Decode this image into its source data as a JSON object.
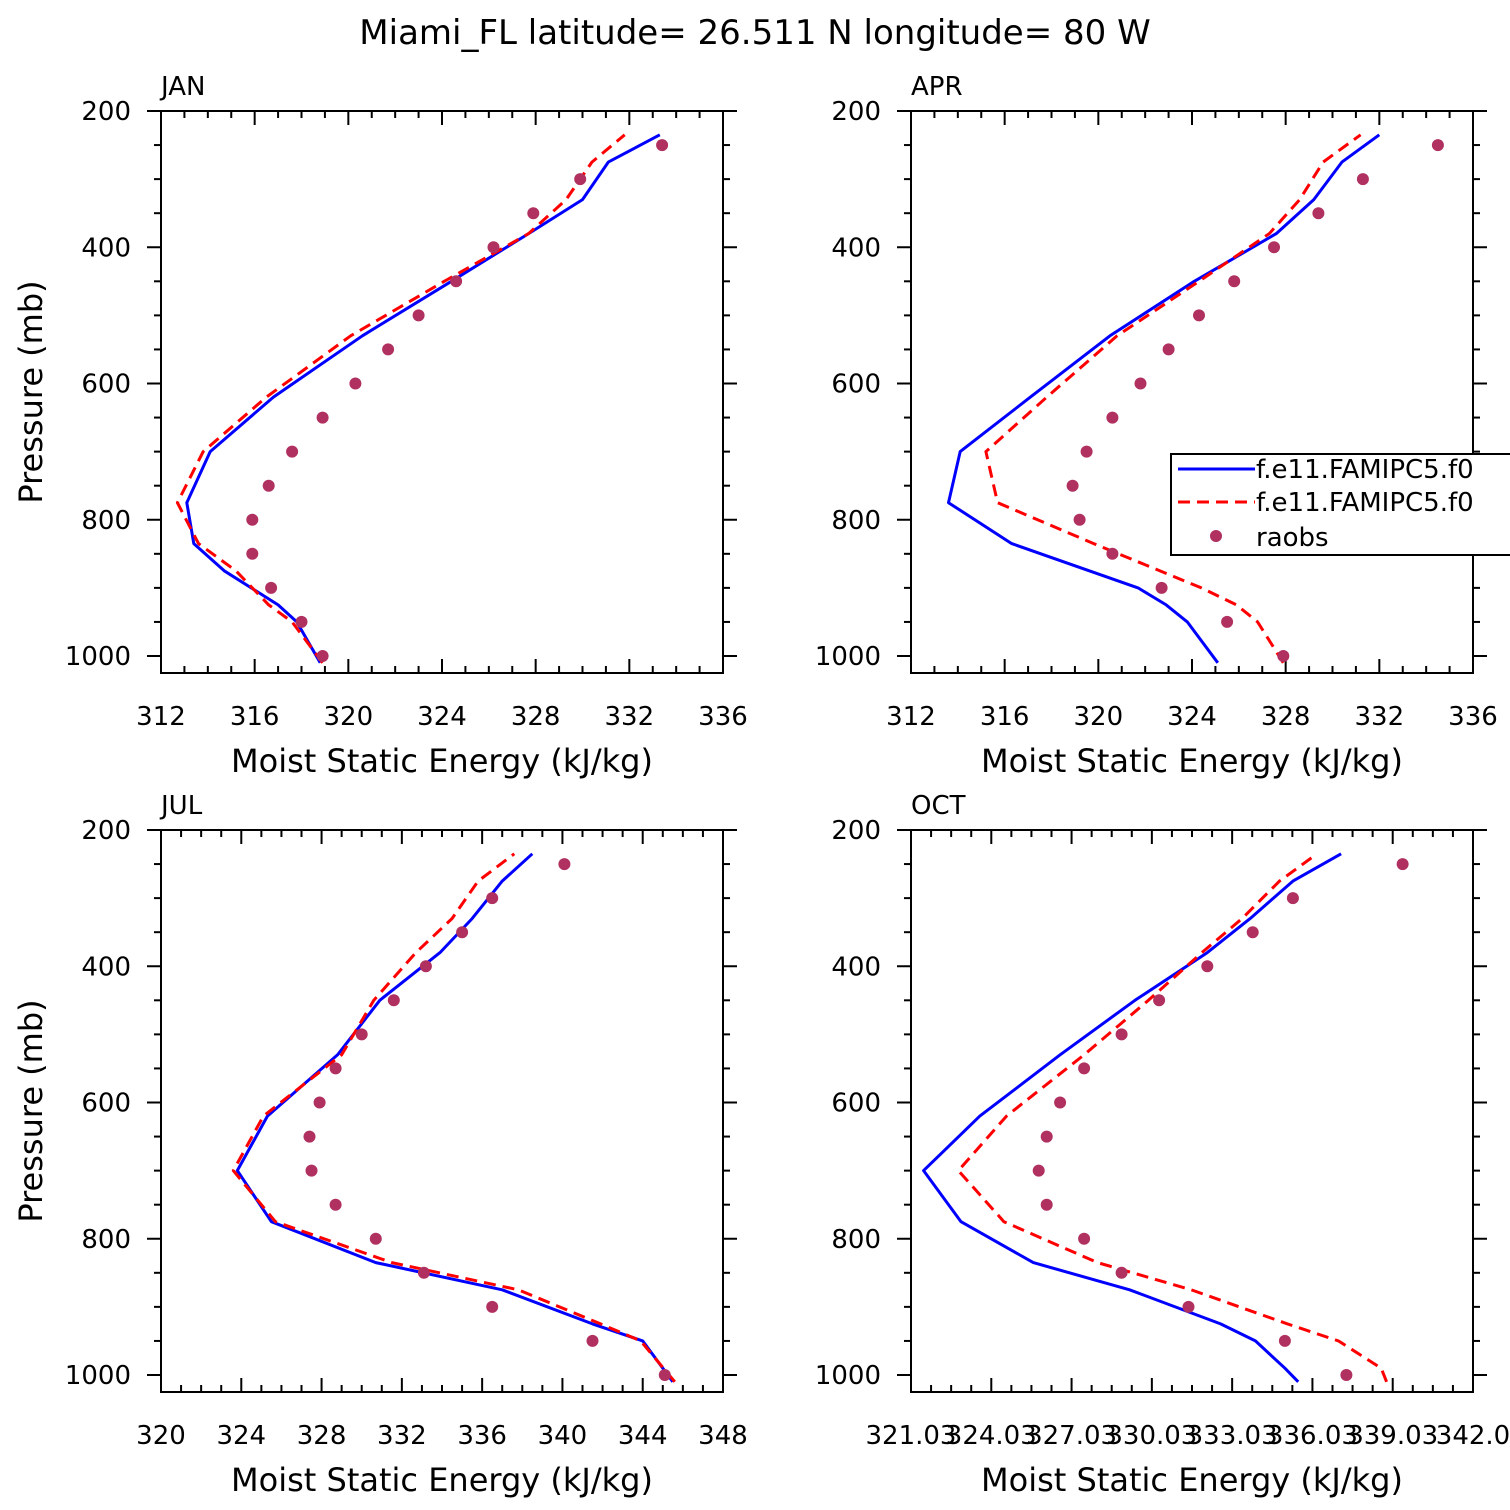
{
  "title": "Miami_FL  latitude= 26.511 N longitude= 80 W",
  "legend": {
    "entries": [
      {
        "label": "f.e11.FAMIPC5.f0",
        "color": "#0000ff",
        "style": "solid"
      },
      {
        "label": "f.e11.FAMIPC5.f0",
        "color": "#ff0000",
        "style": "dashed"
      },
      {
        "label": "raobs",
        "color": "#b03060",
        "style": "dot"
      }
    ],
    "placement": "right-middle of APR panel, clipped at figure edge"
  },
  "colors": {
    "series1": "#0000ff",
    "series2": "#ff0000",
    "obs": "#b03060"
  },
  "chart_data": [
    {
      "type": "line",
      "panel": "JAN",
      "xlabel": "Moist Static Energy (kJ/kg)",
      "ylabel": "Pressure (mb)",
      "xlim": [
        312,
        336
      ],
      "ylim": [
        1000,
        200
      ],
      "xticks": [
        "312",
        "316",
        "320",
        "324",
        "328",
        "332",
        "336"
      ],
      "yticks": [
        "200",
        "400",
        "600",
        "800",
        "1000"
      ],
      "pressure": [
        1010,
        950,
        925,
        875,
        835,
        775,
        700,
        620,
        530,
        450,
        380,
        330,
        275,
        235
      ],
      "series": [
        {
          "name": "f.e11.FAMIPC5.f0",
          "values": [
            318.8,
            317.8,
            317.0,
            314.7,
            313.4,
            313.1,
            314.1,
            316.8,
            320.6,
            324.4,
            327.7,
            330.0,
            331.1,
            333.3
          ]
        },
        {
          "name": "f.e11.FAMIPC5.f0",
          "values": [
            318.9,
            317.6,
            316.6,
            315.2,
            313.6,
            312.7,
            313.8,
            316.5,
            320.1,
            324.1,
            327.7,
            329.3,
            330.4,
            331.8
          ]
        }
      ],
      "raobs": {
        "pressure": [
          1000,
          950,
          900,
          850,
          800,
          750,
          700,
          650,
          600,
          550,
          500,
          450,
          400,
          350,
          300,
          250
        ],
        "values": [
          318.9,
          318.0,
          316.7,
          315.9,
          315.9,
          316.6,
          317.6,
          318.9,
          320.3,
          321.7,
          323.0,
          324.6,
          326.2,
          327.9,
          329.9,
          333.4
        ]
      }
    },
    {
      "type": "line",
      "panel": "APR",
      "xlabel": "Moist Static Energy (kJ/kg)",
      "ylabel": "",
      "xlim": [
        312,
        336
      ],
      "ylim": [
        1000,
        200
      ],
      "xticks": [
        "312",
        "316",
        "320",
        "324",
        "328",
        "332",
        "336"
      ],
      "yticks": [
        "200",
        "400",
        "600",
        "800",
        "1000"
      ],
      "pressure": [
        1010,
        950,
        925,
        900,
        835,
        775,
        700,
        620,
        530,
        450,
        380,
        330,
        275,
        235
      ],
      "series": [
        {
          "name": "f.e11.FAMIPC5.f0",
          "values": [
            325.1,
            323.8,
            322.9,
            321.7,
            316.3,
            313.6,
            314.1,
            317.1,
            320.5,
            324.1,
            327.6,
            329.2,
            330.4,
            332.0
          ]
        },
        {
          "name": "f.e11.FAMIPC5.f0",
          "values": [
            327.9,
            326.8,
            325.9,
            324.4,
            319.8,
            315.7,
            315.2,
            317.8,
            320.8,
            324.3,
            327.3,
            328.6,
            329.6,
            331.2
          ]
        }
      ],
      "raobs": {
        "pressure": [
          1000,
          950,
          900,
          850,
          800,
          750,
          700,
          650,
          600,
          550,
          500,
          450,
          400,
          350,
          300,
          250
        ],
        "values": [
          327.9,
          325.5,
          322.7,
          320.6,
          319.2,
          318.9,
          319.5,
          320.6,
          321.8,
          323.0,
          324.3,
          325.8,
          327.5,
          329.4,
          331.3,
          334.5
        ]
      }
    },
    {
      "type": "line",
      "panel": "JUL",
      "xlabel": "Moist Static Energy (kJ/kg)",
      "ylabel": "Pressure (mb)",
      "xlim": [
        320,
        348
      ],
      "ylim": [
        1000,
        200
      ],
      "xticks": [
        "320",
        "324",
        "328",
        "332",
        "336",
        "340",
        "344",
        "348"
      ],
      "yticks": [
        "200",
        "400",
        "600",
        "800",
        "1000"
      ],
      "pressure": [
        1010,
        950,
        925,
        875,
        835,
        775,
        700,
        620,
        530,
        450,
        380,
        330,
        275,
        235
      ],
      "series": [
        {
          "name": "f.e11.FAMIPC5.f0",
          "values": [
            345.5,
            344.0,
            341.5,
            337.0,
            330.7,
            325.5,
            323.8,
            325.3,
            328.8,
            330.9,
            333.9,
            335.5,
            337.0,
            338.5
          ]
        },
        {
          "name": "f.e11.FAMIPC5.f0",
          "values": [
            345.6,
            343.9,
            341.9,
            337.8,
            331.5,
            325.7,
            323.6,
            325.1,
            329.0,
            330.6,
            332.7,
            334.5,
            335.8,
            337.6
          ]
        }
      ],
      "raobs": {
        "pressure": [
          1000,
          950,
          900,
          850,
          800,
          750,
          700,
          650,
          600,
          550,
          500,
          450,
          400,
          350,
          300,
          250
        ],
        "values": [
          345.1,
          341.5,
          336.5,
          333.1,
          330.7,
          328.7,
          327.5,
          327.4,
          327.9,
          328.7,
          330.0,
          331.6,
          333.2,
          335.0,
          336.5,
          340.1
        ]
      }
    },
    {
      "type": "line",
      "panel": "OCT",
      "xlabel": "Moist Static Energy (kJ/kg)",
      "ylabel": "",
      "xlim": [
        321.03,
        342.03
      ],
      "ylim": [
        1000,
        200
      ],
      "xticks": [
        "321.03",
        "324.03",
        "327.03",
        "330.03",
        "333.03",
        "336.03",
        "339.03",
        "342.0"
      ],
      "yticks": [
        "200",
        "400",
        "600",
        "800",
        "1000"
      ],
      "pressure": [
        1010,
        990,
        950,
        925,
        875,
        835,
        775,
        700,
        620,
        530,
        450,
        380,
        330,
        275,
        235
      ],
      "series": [
        {
          "name": "f.e11.FAMIPC5.f0",
          "values": [
            335.5,
            335.0,
            333.9,
            332.6,
            329.2,
            325.6,
            322.9,
            321.5,
            323.6,
            326.6,
            329.4,
            332.1,
            333.7,
            335.3,
            337.1
          ]
        },
        {
          "name": "f.e11.FAMIPC5.f0",
          "values": [
            338.8,
            338.6,
            337.0,
            335.1,
            331.5,
            328.0,
            324.5,
            322.8,
            324.6,
            327.5,
            329.9,
            331.9,
            333.4,
            334.8,
            336.2
          ]
        }
      ],
      "raobs": {
        "pressure": [
          1000,
          950,
          900,
          850,
          800,
          750,
          700,
          650,
          600,
          550,
          500,
          450,
          400,
          350,
          300,
          250
        ],
        "values": [
          337.3,
          335.0,
          331.4,
          328.9,
          327.5,
          326.1,
          325.8,
          326.1,
          326.6,
          327.5,
          328.9,
          330.3,
          332.1,
          333.8,
          335.3,
          339.4
        ]
      }
    }
  ]
}
